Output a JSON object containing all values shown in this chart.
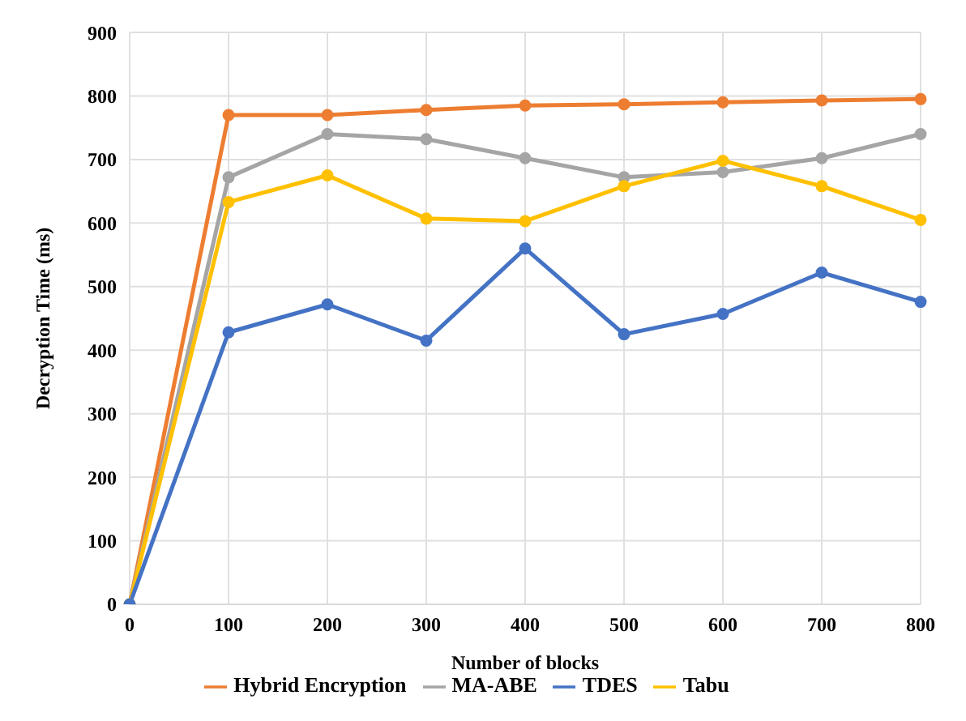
{
  "chart_data": {
    "type": "line",
    "xlabel": "Number of blocks",
    "ylabel": "Decryption Time (ms)",
    "categories": [
      "0",
      "100",
      "200",
      "300",
      "400",
      "500",
      "600",
      "700",
      "800"
    ],
    "series": [
      {
        "name": "Hybrid Encryption",
        "color": "#ed7d31",
        "values": [
          0,
          770,
          770,
          778,
          785,
          787,
          790,
          793,
          795
        ]
      },
      {
        "name": "MA-ABE",
        "color": "#a5a5a5",
        "values": [
          0,
          672,
          740,
          732,
          702,
          672,
          680,
          702,
          740
        ]
      },
      {
        "name": "Tabu",
        "color": "#ffc000",
        "values": [
          0,
          633,
          675,
          607,
          603,
          658,
          698,
          658,
          605
        ]
      },
      {
        "name": "TDES",
        "color": "#4472c4",
        "values": [
          0,
          428,
          472,
          415,
          560,
          425,
          457,
          522,
          476
        ]
      }
    ],
    "ylim": [
      0,
      900
    ],
    "yticks": [
      0,
      100,
      200,
      300,
      400,
      500,
      600,
      700,
      800,
      900
    ],
    "grid": true,
    "legend": "bottom",
    "marker": "circle",
    "line_style": "solid"
  }
}
